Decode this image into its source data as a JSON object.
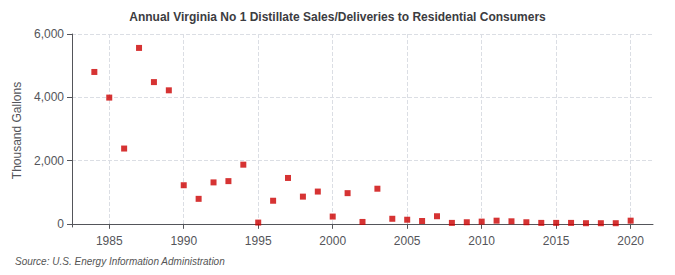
{
  "chart_data": {
    "type": "scatter",
    "title": "Annual Virginia No 1 Distillate Sales/Deliveries to Residential Consumers",
    "ylabel": "Thousand Gallons",
    "annotation": "Source: U.S. Energy Information Administration",
    "x": [
      1984,
      1985,
      1986,
      1987,
      1988,
      1989,
      1990,
      1991,
      1992,
      1993,
      1994,
      1995,
      1996,
      1997,
      1998,
      1999,
      2000,
      2001,
      2002,
      2003,
      2004,
      2005,
      2006,
      2007,
      2008,
      2009,
      2010,
      2011,
      2012,
      2013,
      2014,
      2015,
      2016,
      2017,
      2018,
      2019,
      2020
    ],
    "values": [
      4800,
      3990,
      2380,
      5560,
      4480,
      4220,
      1220,
      790,
      1310,
      1350,
      1870,
      40,
      730,
      1450,
      860,
      1020,
      230,
      970,
      60,
      1110,
      160,
      130,
      90,
      240,
      30,
      50,
      70,
      100,
      80,
      50,
      30,
      30,
      30,
      20,
      20,
      20,
      100
    ],
    "color": "#cc0000",
    "marker": "square",
    "xlim": [
      1982.5,
      2021.5
    ],
    "xticks": [
      1985,
      1990,
      1995,
      2000,
      2005,
      2010,
      2015,
      2020
    ],
    "ylim": [
      -100,
      6000
    ],
    "yticks": [
      0,
      {
        "value": 2000,
        "label": "2,000"
      },
      {
        "value": 4000,
        "label": "4,000"
      },
      {
        "value": 6000,
        "label": "6,000"
      }
    ],
    "grid": true
  }
}
